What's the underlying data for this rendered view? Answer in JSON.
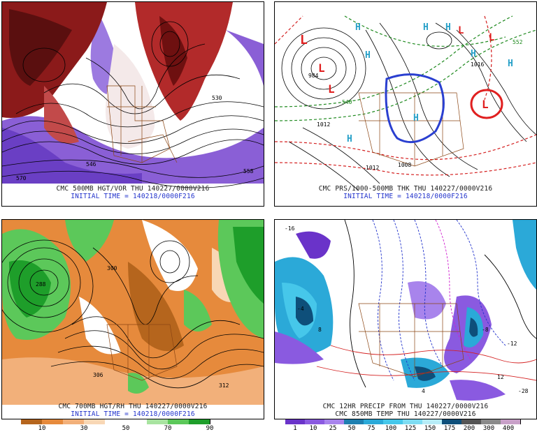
{
  "panels": {
    "tl": {
      "caption": "CMC 500MB HGT/VOR THU 140227/0000V216",
      "initial": "INITIAL TIME = 140218/0000F216"
    },
    "tr": {
      "caption": "CMC PRS/1000-500MB THK THU 140227/0000V216",
      "initial": "INITIAL TIME = 140218/0000F216"
    },
    "bl": {
      "caption": "CMC 700MB HGT/RH THU 140227/0000V216",
      "initial": "INITIAL TIME = 140218/0000F216"
    },
    "br": {
      "caption": "CMC 12HR PRECIP FROM THU 140227/0000V216",
      "caption2": "CMC 850MB TEMP THU 140227/0000V216"
    }
  },
  "rh_scale": {
    "labels": [
      "10",
      "30",
      "50",
      "70",
      "90"
    ],
    "colors": [
      "#b5651d",
      "#e68a3c",
      "#f2b07a",
      "#f8d7b5",
      "#ffffff",
      "#ffffff",
      "#a8e3a0",
      "#5cc85a",
      "#1e9e2a"
    ]
  },
  "precip_scale": {
    "labels": [
      "1",
      "10",
      "25",
      "50",
      "75",
      "100",
      "125",
      "150",
      "175",
      "200",
      "300",
      "400"
    ],
    "colors": [
      "#6a33c9",
      "#8a5ae0",
      "#a884ec",
      "#1e7fb0",
      "#2ba9d8",
      "#46c7ea",
      "#7edcf2",
      "#b7ecf7",
      "#0e4f7a",
      "#555555",
      "#8a8a8a",
      "#c8a0c8"
    ]
  },
  "map_labels": {
    "low": "L",
    "high": "H",
    "tl_marks": [
      "530",
      "546",
      "558",
      "570"
    ],
    "tr_marks": [
      "984",
      "1012",
      "1008",
      "1016",
      "1012",
      "552",
      "540"
    ],
    "bl_marks": [
      "300",
      "288",
      "312",
      "306"
    ],
    "br_marks": [
      "-16",
      "-4",
      "8",
      "-12",
      "-8",
      "4",
      "-28",
      "12"
    ]
  }
}
